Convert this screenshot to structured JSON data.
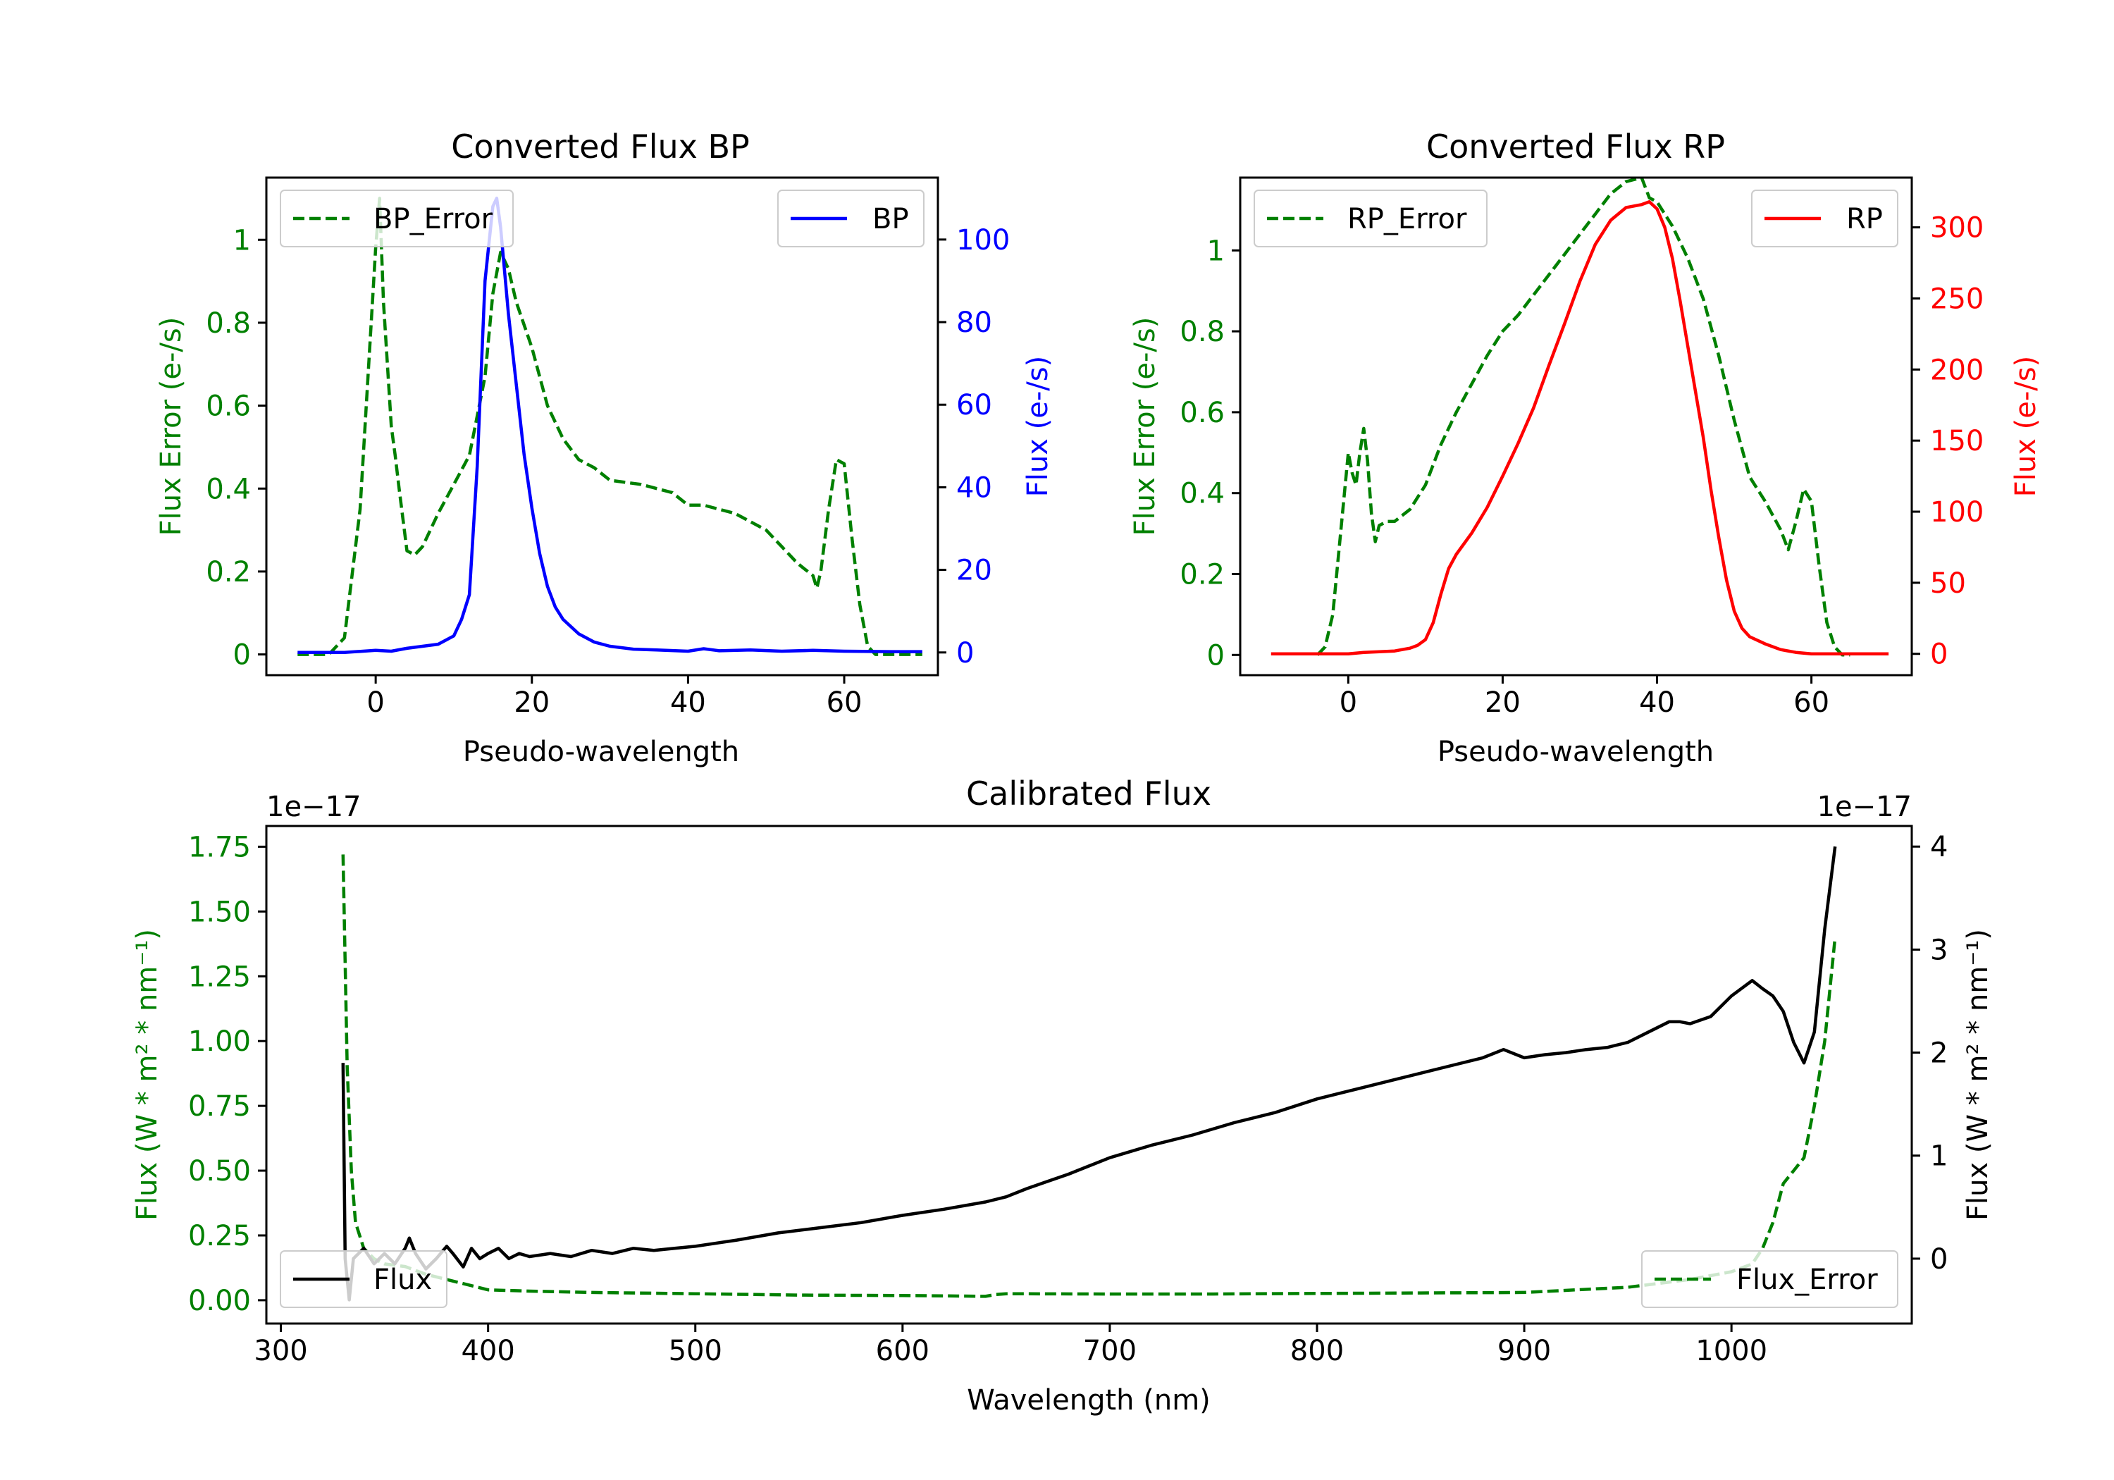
{
  "colors": {
    "error": "#008000",
    "bp": "#0000ff",
    "rp": "#ff0000",
    "flux": "#000000",
    "axis": "#000000",
    "background": "#ffffff"
  },
  "chart_data": [
    {
      "id": "bp",
      "type": "line",
      "title": "Converted Flux BP",
      "xlabel": "Pseudo-wavelength",
      "ylabel_left": "Flux Error (e-/s)",
      "ylabel_right": "Flux (e-/s)",
      "xlim": [
        -14,
        72
      ],
      "ylim_left": [
        -0.05,
        1.15
      ],
      "ylim_right": [
        -5.5,
        115
      ],
      "xticks": [
        0,
        20,
        40,
        60
      ],
      "yticks_left": [
        0.0,
        0.2,
        0.4,
        0.6,
        0.8,
        1.0
      ],
      "yticks_right": [
        0,
        20,
        40,
        60,
        80,
        100
      ],
      "series": [
        {
          "name": "BP_Error",
          "axis": "left",
          "style": "dashed",
          "color": "#008000",
          "x": [
            -10,
            -6,
            -4,
            -2,
            0,
            0.5,
            1,
            2,
            2.5,
            3,
            4,
            5,
            6,
            8,
            10,
            12,
            14,
            15,
            16,
            17,
            18,
            20,
            22,
            24,
            26,
            28,
            30,
            34,
            38,
            40,
            42,
            46,
            50,
            52,
            54,
            56,
            56.5,
            57,
            58,
            59,
            60,
            61,
            62,
            63,
            64,
            66,
            70
          ],
          "y": [
            0.0,
            0.0,
            0.04,
            0.35,
            0.98,
            1.1,
            0.85,
            0.55,
            0.48,
            0.4,
            0.25,
            0.24,
            0.26,
            0.34,
            0.41,
            0.48,
            0.67,
            0.87,
            0.97,
            0.93,
            0.85,
            0.74,
            0.6,
            0.52,
            0.47,
            0.45,
            0.42,
            0.41,
            0.39,
            0.36,
            0.36,
            0.34,
            0.3,
            0.26,
            0.22,
            0.19,
            0.16,
            0.2,
            0.35,
            0.47,
            0.46,
            0.28,
            0.12,
            0.02,
            0.0,
            0.0,
            0.0
          ]
        },
        {
          "name": "BP",
          "axis": "right",
          "style": "solid",
          "color": "#0000ff",
          "x": [
            -10,
            -4,
            0,
            2,
            4,
            6,
            8,
            10,
            11,
            12,
            13,
            14,
            15,
            15.5,
            16,
            17,
            18,
            19,
            20,
            21,
            22,
            23,
            24,
            26,
            28,
            30,
            33,
            36,
            40,
            42,
            44,
            48,
            52,
            56,
            60,
            66,
            70
          ],
          "y": [
            0,
            0,
            0.5,
            0.3,
            1,
            1.5,
            2,
            4,
            8,
            14,
            45,
            90,
            108,
            110,
            103,
            82,
            65,
            48,
            35,
            24,
            16,
            11,
            8,
            4.5,
            2.5,
            1.5,
            0.8,
            0.6,
            0.3,
            0.9,
            0.4,
            0.6,
            0.3,
            0.5,
            0.3,
            0.2,
            0.2
          ]
        }
      ],
      "legend": [
        {
          "label": "BP_Error",
          "position": "upper-left"
        },
        {
          "label": "BP",
          "position": "upper-right"
        }
      ]
    },
    {
      "id": "rp",
      "type": "line",
      "title": "Converted Flux RP",
      "xlabel": "Pseudo-wavelength",
      "ylabel_left": "Flux Error (e-/s)",
      "ylabel_right": "Flux (e-/s)",
      "xlim": [
        -14,
        73
      ],
      "ylim_left": [
        -0.05,
        1.18
      ],
      "ylim_right": [
        -15,
        335
      ],
      "xticks": [
        0,
        20,
        40,
        60
      ],
      "yticks_left": [
        0.0,
        0.2,
        0.4,
        0.6,
        0.8,
        1.0
      ],
      "yticks_right": [
        0,
        50,
        100,
        150,
        200,
        250,
        300
      ],
      "series": [
        {
          "name": "RP_Error",
          "axis": "left",
          "style": "dashed",
          "color": "#008000",
          "x": [
            -4,
            -3,
            -2,
            -1,
            0,
            0.5,
            1,
            1.5,
            2,
            2.5,
            3,
            3.5,
            4,
            5,
            6,
            8,
            10,
            12,
            14,
            16,
            18,
            20,
            22,
            24,
            26,
            28,
            30,
            32,
            34,
            36,
            38,
            39,
            40,
            42,
            44,
            46,
            48,
            50,
            52,
            54,
            56,
            57,
            58,
            59,
            60,
            61,
            62,
            63,
            64,
            65
          ],
          "y": [
            0.0,
            0.02,
            0.1,
            0.3,
            0.5,
            0.45,
            0.42,
            0.5,
            0.56,
            0.48,
            0.35,
            0.28,
            0.32,
            0.33,
            0.33,
            0.36,
            0.42,
            0.52,
            0.6,
            0.67,
            0.74,
            0.8,
            0.84,
            0.89,
            0.94,
            0.99,
            1.04,
            1.09,
            1.14,
            1.17,
            1.18,
            1.13,
            1.12,
            1.06,
            0.98,
            0.88,
            0.74,
            0.58,
            0.44,
            0.38,
            0.31,
            0.26,
            0.33,
            0.41,
            0.38,
            0.22,
            0.08,
            0.02,
            0.0,
            0.0
          ]
        },
        {
          "name": "RP",
          "axis": "right",
          "style": "solid",
          "color": "#ff0000",
          "x": [
            -10,
            -5,
            0,
            2,
            4,
            6,
            8,
            9,
            10,
            11,
            12,
            13,
            14,
            16,
            18,
            20,
            22,
            24,
            26,
            28,
            30,
            32,
            34,
            36,
            38,
            39,
            40,
            41,
            42,
            43,
            44,
            46,
            47,
            48,
            49,
            50,
            51,
            52,
            54,
            56,
            58,
            60,
            62,
            66,
            70
          ],
          "y": [
            0,
            0,
            0,
            1,
            1.5,
            2,
            4,
            6,
            10,
            22,
            42,
            60,
            70,
            85,
            103,
            125,
            148,
            173,
            203,
            232,
            262,
            288,
            305,
            314,
            316,
            318,
            313,
            300,
            278,
            248,
            216,
            152,
            115,
            82,
            52,
            30,
            18,
            12,
            7,
            3,
            1,
            0,
            0,
            0,
            0
          ]
        }
      ],
      "legend": [
        {
          "label": "RP_Error",
          "position": "upper-left"
        },
        {
          "label": "RP",
          "position": "upper-right"
        }
      ]
    },
    {
      "id": "cal",
      "type": "line",
      "title": "Calibrated Flux",
      "xlabel": "Wavelength (nm)",
      "ylabel_left": "Flux (W * m² * nm⁻¹)",
      "ylabel_right": "Flux (W * m² * nm⁻¹)",
      "offset_left": "1e−17",
      "offset_right": "1e−17",
      "xlim": [
        293,
        1087
      ],
      "ylim_left": [
        -0.09,
        1.83
      ],
      "ylim_right": [
        -0.63,
        4.2
      ],
      "xticks": [
        300,
        400,
        500,
        600,
        700,
        800,
        900,
        1000
      ],
      "yticks_left": [
        0.0,
        0.25,
        0.5,
        0.75,
        1.0,
        1.25,
        1.5,
        1.75
      ],
      "ytick_labels_left": [
        "0.00",
        "0.25",
        "0.50",
        "0.75",
        "1.00",
        "1.25",
        "1.50",
        "1.75"
      ],
      "yticks_right": [
        0,
        1,
        2,
        3,
        4
      ],
      "series": [
        {
          "name": "Flux_Error",
          "axis": "left",
          "style": "dashed",
          "color": "#008000",
          "x": [
            330,
            332,
            334,
            336,
            340,
            345,
            350,
            360,
            370,
            380,
            390,
            400,
            420,
            450,
            500,
            550,
            600,
            620,
            640,
            645,
            650,
            700,
            750,
            800,
            850,
            900,
            950,
            980,
            1000,
            1010,
            1015,
            1020,
            1025,
            1030,
            1035,
            1040,
            1045,
            1050
          ],
          "y": [
            1.72,
            0.9,
            0.5,
            0.3,
            0.2,
            0.16,
            0.14,
            0.13,
            0.1,
            0.08,
            0.06,
            0.04,
            0.035,
            0.03,
            0.025,
            0.02,
            0.018,
            0.017,
            0.015,
            0.022,
            0.025,
            0.024,
            0.024,
            0.026,
            0.028,
            0.03,
            0.05,
            0.08,
            0.11,
            0.14,
            0.2,
            0.3,
            0.45,
            0.5,
            0.55,
            0.75,
            1.0,
            1.4
          ]
        },
        {
          "name": "Flux",
          "axis": "right",
          "style": "solid",
          "color": "#000000",
          "x": [
            330,
            331,
            333,
            335,
            340,
            345,
            350,
            355,
            360,
            362,
            365,
            370,
            375,
            380,
            383,
            388,
            392,
            396,
            400,
            405,
            410,
            415,
            420,
            430,
            440,
            450,
            460,
            470,
            480,
            490,
            500,
            520,
            540,
            560,
            580,
            600,
            620,
            640,
            650,
            660,
            670,
            680,
            690,
            700,
            720,
            740,
            760,
            780,
            800,
            820,
            840,
            860,
            880,
            890,
            900,
            910,
            920,
            930,
            940,
            950,
            960,
            970,
            975,
            980,
            990,
            1000,
            1010,
            1015,
            1020,
            1025,
            1030,
            1035,
            1040,
            1045,
            1050
          ],
          "y": [
            1.9,
            0.0,
            -0.4,
            0.0,
            0.1,
            -0.05,
            0.05,
            -0.05,
            0.1,
            0.2,
            0.05,
            -0.1,
            0.0,
            0.12,
            0.05,
            -0.08,
            0.1,
            0.0,
            0.05,
            0.1,
            0.0,
            0.05,
            0.02,
            0.05,
            0.02,
            0.08,
            0.05,
            0.1,
            0.08,
            0.1,
            0.12,
            0.18,
            0.25,
            0.3,
            0.35,
            0.42,
            0.48,
            0.55,
            0.6,
            0.68,
            0.75,
            0.82,
            0.9,
            0.98,
            1.1,
            1.2,
            1.32,
            1.42,
            1.55,
            1.65,
            1.75,
            1.85,
            1.95,
            2.03,
            1.95,
            1.98,
            2.0,
            2.03,
            2.05,
            2.1,
            2.2,
            2.3,
            2.3,
            2.28,
            2.35,
            2.55,
            2.7,
            2.62,
            2.55,
            2.4,
            2.1,
            1.9,
            2.2,
            3.2,
            4.0
          ]
        }
      ],
      "legend": [
        {
          "label": "Flux",
          "position": "lower-left"
        },
        {
          "label": "Flux_Error",
          "position": "lower-right"
        }
      ]
    }
  ]
}
